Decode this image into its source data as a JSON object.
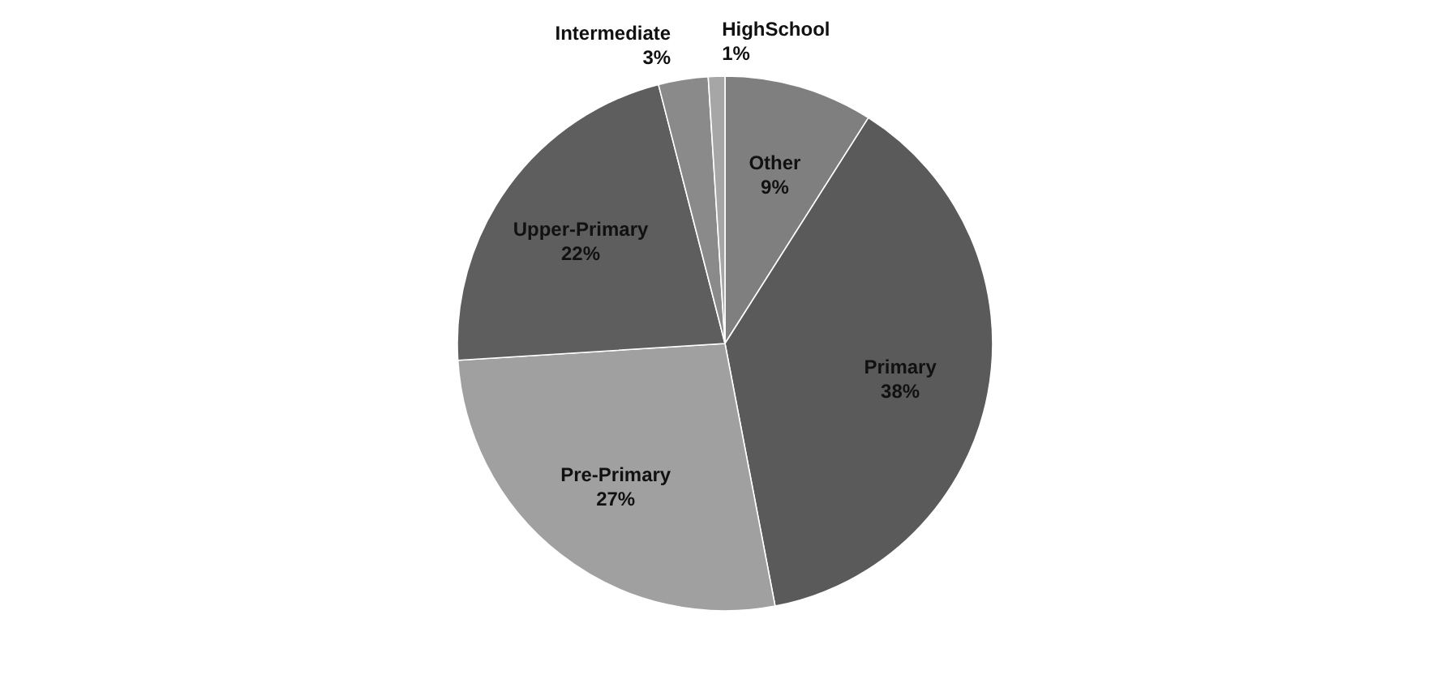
{
  "chart_data": {
    "type": "pie",
    "categories": [
      "Other",
      "Primary",
      "Pre-Primary",
      "Upper-Primary",
      "Intermediate",
      "HighSchool"
    ],
    "values": [
      9,
      38,
      27,
      22,
      3,
      1
    ],
    "colors": [
      "#7f7f7f",
      "#5a5a5a",
      "#a0a0a0",
      "#5e5e5e",
      "#8a8a8a",
      "#a6a6a6"
    ],
    "value_labels": [
      "9%",
      "38%",
      "27%",
      "22%",
      "3%",
      "1%"
    ],
    "legend": false
  }
}
